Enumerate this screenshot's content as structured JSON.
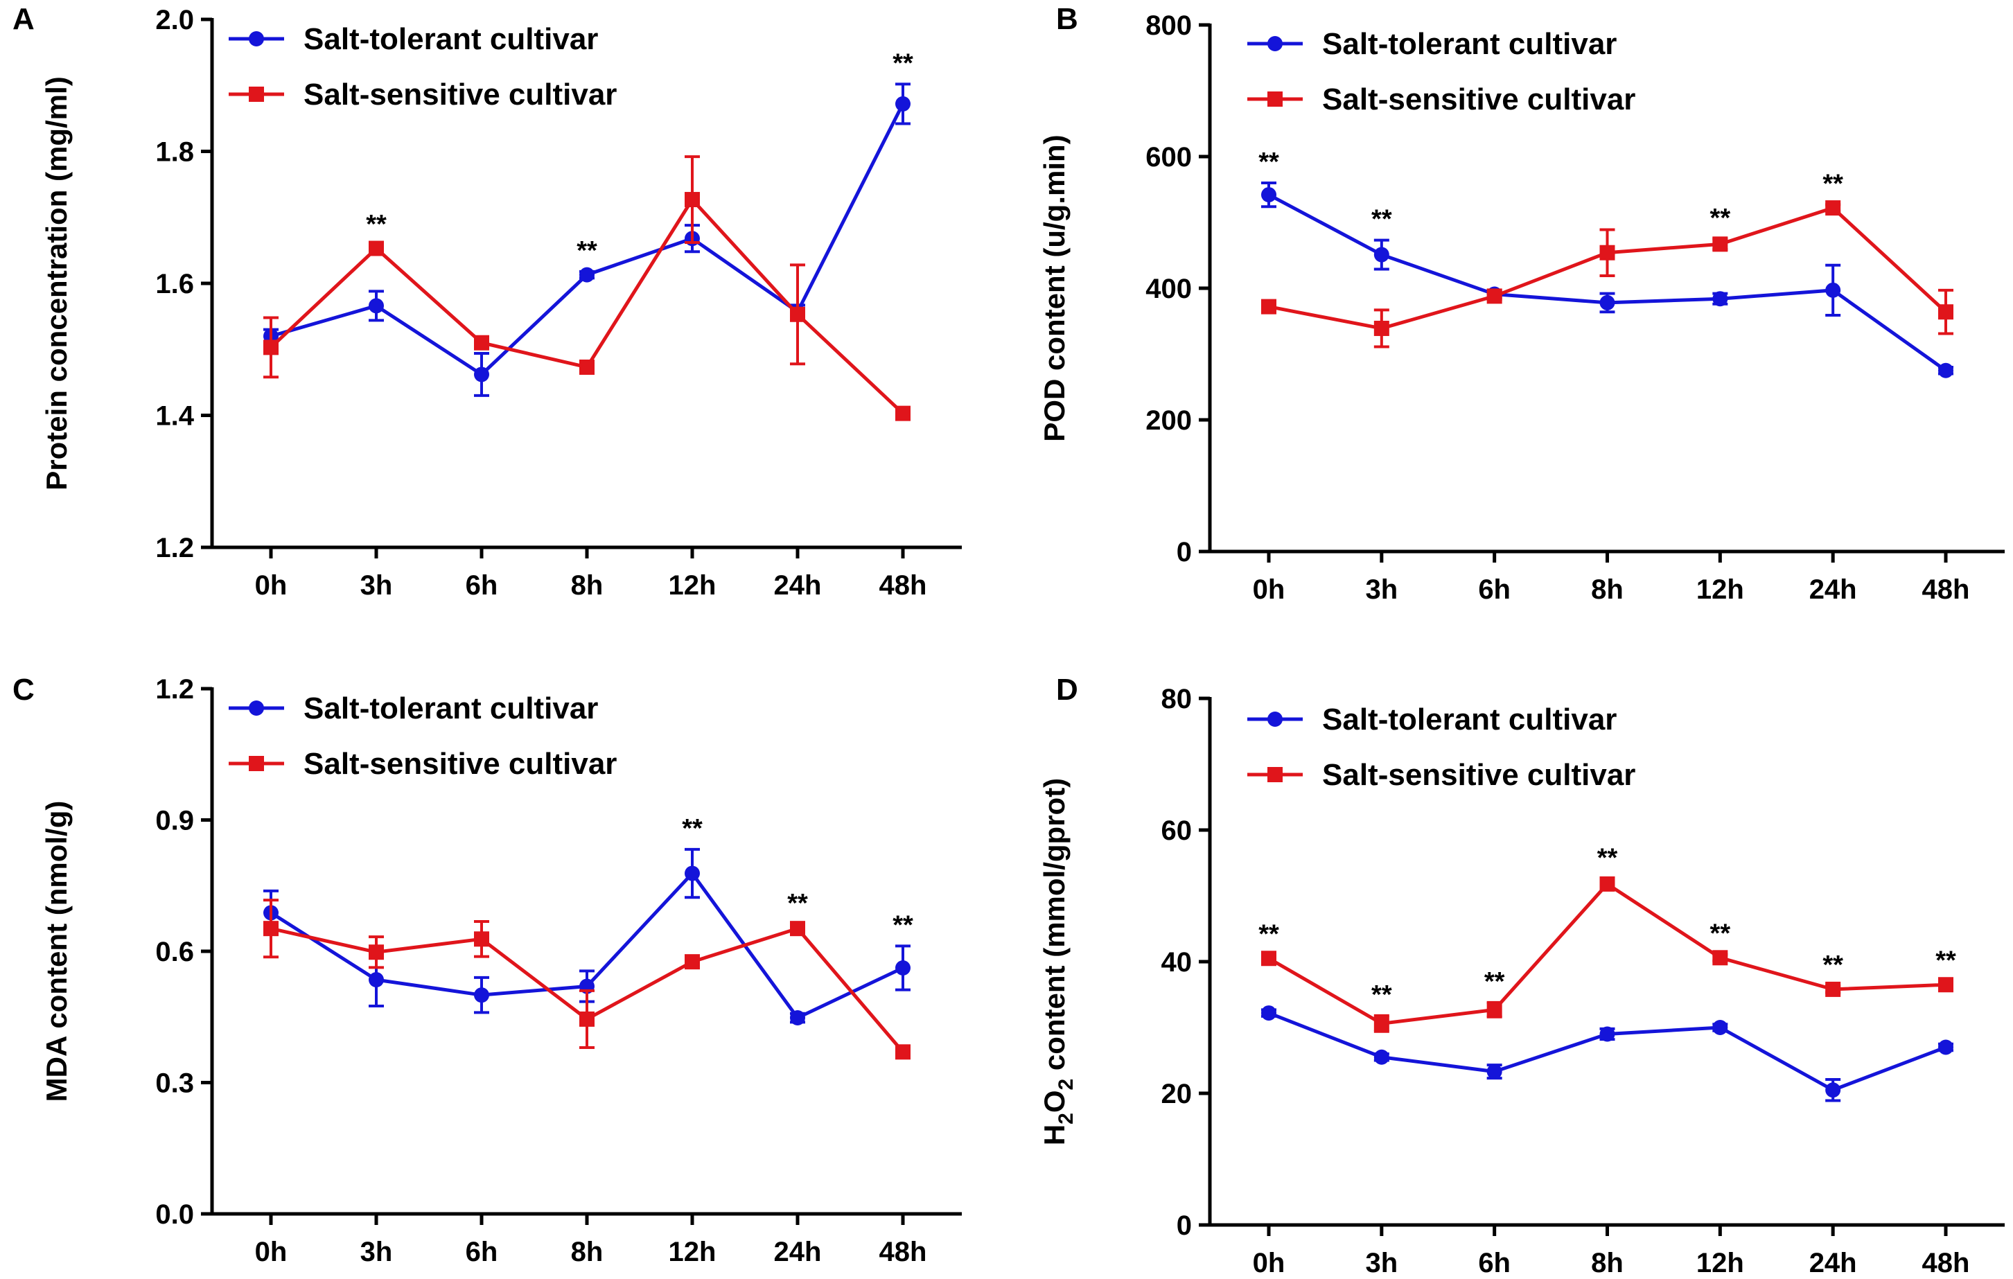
{
  "figure": {
    "colors": {
      "tolerant": "#1414d9",
      "sensitive": "#e0151b"
    },
    "legend": {
      "tolerant": "Salt-tolerant cultivar",
      "sensitive": "Salt-sensitive cultivar"
    }
  },
  "chart_data": [
    {
      "type": "line",
      "panel": "A",
      "title": "",
      "xlabel": "",
      "ylabel": "Protein concentration (mg/ml)",
      "categories": [
        "0h",
        "3h",
        "6h",
        "8h",
        "12h",
        "24h",
        "48h"
      ],
      "ylim": [
        1.2,
        2.0
      ],
      "yticks": [
        1.2,
        1.4,
        1.6,
        1.8,
        2.0
      ],
      "ytick_labels": [
        "1.2",
        "1.4",
        "1.6",
        "1.8",
        "2.0"
      ],
      "legend_position": "top-left",
      "series": [
        {
          "name": "Salt-tolerant cultivar",
          "key": "tolerant",
          "marker": "circle",
          "values": [
            1.52,
            1.566,
            1.462,
            1.613,
            1.668,
            1.557,
            1.872
          ],
          "errors": [
            0.01,
            0.022,
            0.032,
            0.005,
            0.02,
            0.01,
            0.03
          ]
        },
        {
          "name": "Salt-sensitive cultivar",
          "key": "sensitive",
          "marker": "square",
          "values": [
            1.503,
            1.653,
            1.51,
            1.473,
            1.727,
            1.553,
            1.403
          ],
          "errors": [
            0.045,
            0.005,
            0.005,
            0.005,
            0.065,
            0.075,
            0.005
          ]
        }
      ],
      "annotations": [
        {
          "index": 1,
          "text": "**",
          "anchor": "sensitive"
        },
        {
          "index": 3,
          "text": "**",
          "anchor": "tolerant"
        },
        {
          "index": 6,
          "text": "**",
          "anchor": "tolerant"
        }
      ]
    },
    {
      "type": "line",
      "panel": "B",
      "title": "",
      "xlabel": "",
      "ylabel": "POD content (u/g.min)",
      "categories": [
        "0h",
        "3h",
        "6h",
        "8h",
        "12h",
        "24h",
        "48h"
      ],
      "ylim": [
        0,
        800
      ],
      "yticks": [
        0,
        200,
        400,
        600,
        800
      ],
      "ytick_labels": [
        "0",
        "200",
        "400",
        "600",
        "800"
      ],
      "legend_position": "top-left",
      "series": [
        {
          "name": "Salt-tolerant cultivar",
          "key": "tolerant",
          "marker": "circle",
          "values": [
            542,
            451,
            391,
            378,
            384,
            397,
            275
          ],
          "errors": [
            18,
            22,
            5,
            14,
            8,
            38,
            5
          ]
        },
        {
          "name": "Salt-sensitive cultivar",
          "key": "sensitive",
          "marker": "square",
          "values": [
            372,
            339,
            388,
            454,
            467,
            522,
            364
          ],
          "errors": [
            5,
            28,
            5,
            35,
            8,
            5,
            33
          ]
        }
      ],
      "annotations": [
        {
          "index": 0,
          "text": "**",
          "anchor": "tolerant"
        },
        {
          "index": 1,
          "text": "**",
          "anchor": "tolerant"
        },
        {
          "index": 4,
          "text": "**",
          "anchor": "sensitive"
        },
        {
          "index": 5,
          "text": "**",
          "anchor": "sensitive"
        }
      ]
    },
    {
      "type": "line",
      "panel": "C",
      "title": "",
      "xlabel": "",
      "ylabel": "MDA content (nmol/g)",
      "categories": [
        "0h",
        "3h",
        "6h",
        "8h",
        "12h",
        "24h",
        "48h"
      ],
      "ylim": [
        0.0,
        1.2
      ],
      "yticks": [
        0.0,
        0.3,
        0.6,
        0.9,
        1.2
      ],
      "ytick_labels": [
        "0.0",
        "0.3",
        "0.6",
        "0.9",
        "1.2"
      ],
      "legend_position": "top-left",
      "series": [
        {
          "name": "Salt-tolerant cultivar",
          "key": "tolerant",
          "marker": "circle",
          "values": [
            0.688,
            0.535,
            0.5,
            0.52,
            0.778,
            0.448,
            0.562
          ],
          "errors": [
            0.05,
            0.06,
            0.04,
            0.035,
            0.055,
            0.01,
            0.05
          ]
        },
        {
          "name": "Salt-sensitive cultivar",
          "key": "sensitive",
          "marker": "square",
          "values": [
            0.652,
            0.598,
            0.628,
            0.445,
            0.576,
            0.652,
            0.37
          ],
          "errors": [
            0.065,
            0.035,
            0.04,
            0.065,
            0.01,
            0.01,
            0.01
          ]
        }
      ],
      "annotations": [
        {
          "index": 4,
          "text": "**",
          "anchor": "tolerant"
        },
        {
          "index": 5,
          "text": "**",
          "anchor": "sensitive"
        },
        {
          "index": 6,
          "text": "**",
          "anchor": "tolerant"
        }
      ]
    },
    {
      "type": "line",
      "panel": "D",
      "title": "",
      "xlabel": "",
      "ylabel": "H2O2 content (mmol/gprot)",
      "ylabel_parts": {
        "pre": "H",
        "sub1": "2",
        "mid": "O",
        "sub2": "2",
        "post": "  content (mmol/gprot)"
      },
      "categories": [
        "0h",
        "3h",
        "6h",
        "8h",
        "12h",
        "24h",
        "48h"
      ],
      "ylim": [
        0,
        80
      ],
      "yticks": [
        0,
        20,
        40,
        60,
        80
      ],
      "ytick_labels": [
        "0",
        "20",
        "40",
        "60",
        "80"
      ],
      "legend_position": "top-left",
      "series": [
        {
          "name": "Salt-tolerant cultivar",
          "key": "tolerant",
          "marker": "circle",
          "values": [
            32.2,
            25.5,
            23.3,
            29,
            30,
            20.5,
            27
          ],
          "errors": [
            0.5,
            0.5,
            1.0,
            0.8,
            0.5,
            1.6,
            0.5
          ]
        },
        {
          "name": "Salt-sensitive cultivar",
          "key": "sensitive",
          "marker": "square",
          "values": [
            40.5,
            30.6,
            32.7,
            51.8,
            40.6,
            35.8,
            36.5
          ],
          "errors": [
            0.5,
            1.2,
            1.1,
            0.8,
            0.5,
            0.5,
            0.5
          ]
        }
      ],
      "annotations": [
        {
          "index": 0,
          "text": "**",
          "anchor": "sensitive"
        },
        {
          "index": 1,
          "text": "**",
          "anchor": "sensitive"
        },
        {
          "index": 2,
          "text": "**",
          "anchor": "sensitive"
        },
        {
          "index": 3,
          "text": "**",
          "anchor": "sensitive"
        },
        {
          "index": 4,
          "text": "**",
          "anchor": "sensitive"
        },
        {
          "index": 5,
          "text": "**",
          "anchor": "sensitive"
        },
        {
          "index": 6,
          "text": "**",
          "anchor": "sensitive"
        }
      ]
    }
  ]
}
